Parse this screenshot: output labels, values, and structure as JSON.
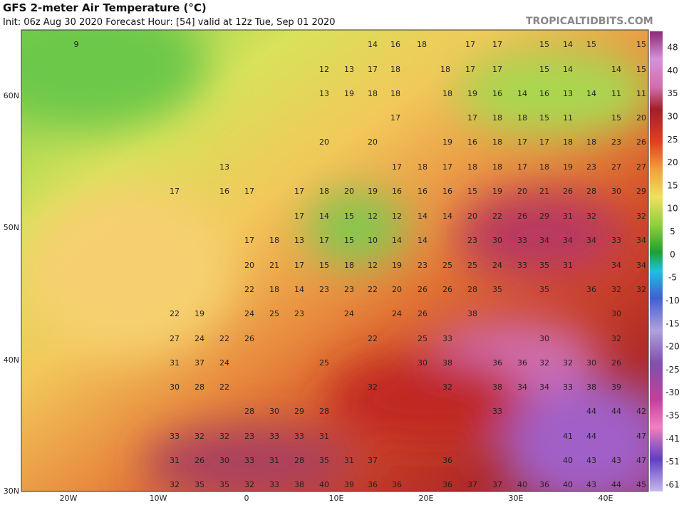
{
  "header": {
    "title": "GFS 2-meter Air Temperature (°C)",
    "subtitle": "Init: 06z Aug 30 2020   Forecast Hour: [54]   valid at 12z Tue, Sep 01 2020",
    "brand": "TROPICALTIDBITS.COM"
  },
  "map": {
    "lat_labels": [
      "60N",
      "50N",
      "40N",
      "30N"
    ],
    "lon_labels": [
      "20W",
      "10W",
      "0",
      "10E",
      "20E",
      "30E",
      "40E"
    ],
    "colorbar_labels": [
      "48",
      "40",
      "35",
      "30",
      "25",
      "20",
      "15",
      "10",
      "5",
      "0",
      "-5",
      "-10",
      "-15",
      "-20",
      "-25",
      "-30",
      "-35",
      "-41",
      "-51",
      "-61"
    ],
    "rows": [
      [
        9,
        14,
        16,
        18,
        17,
        17,
        15,
        14,
        15,
        15
      ],
      [
        12,
        13,
        17,
        18,
        18,
        17,
        17,
        15,
        14,
        14,
        15
      ],
      [
        13,
        19,
        18,
        18,
        18,
        19,
        16,
        14,
        16,
        13,
        14,
        11,
        11
      ],
      [
        17,
        17,
        18,
        18,
        15,
        11,
        15,
        20
      ],
      [
        20,
        20,
        19,
        16,
        18,
        17,
        17,
        18,
        18,
        23,
        26
      ],
      [
        13,
        17,
        18,
        17,
        18,
        18,
        17,
        18,
        19,
        23,
        27,
        27
      ],
      [
        17,
        16,
        17,
        17,
        18,
        20,
        19,
        16,
        16,
        16,
        15,
        19,
        20,
        21,
        26,
        28,
        30,
        29
      ],
      [
        17,
        14,
        15,
        12,
        12,
        14,
        14,
        20,
        22,
        26,
        29,
        31,
        32,
        32
      ],
      [
        17,
        18,
        13,
        17,
        15,
        10,
        14,
        14,
        23,
        30,
        33,
        34,
        34,
        34,
        33,
        34
      ],
      [
        20,
        21,
        17,
        15,
        18,
        12,
        19,
        23,
        25,
        25,
        24,
        33,
        35,
        31,
        34,
        34
      ],
      [
        22,
        18,
        14,
        23,
        23,
        22,
        20,
        26,
        26,
        28,
        35,
        35,
        36,
        32,
        32
      ],
      [
        22,
        19,
        24,
        25,
        23,
        24,
        24,
        26,
        38,
        30
      ],
      [
        27,
        24,
        22,
        26,
        22,
        25,
        33,
        30,
        32
      ],
      [
        31,
        37,
        24,
        25,
        30,
        38,
        36,
        36,
        32,
        32,
        30,
        26
      ],
      [
        30,
        28,
        22,
        32,
        32,
        38,
        34,
        34,
        33,
        38,
        39
      ],
      [
        28,
        30,
        29,
        28,
        33,
        44,
        44,
        42
      ],
      [
        33,
        32,
        32,
        23,
        33,
        33,
        31,
        41,
        44,
        47
      ],
      [
        31,
        26,
        30,
        33,
        31,
        28,
        35,
        31,
        37,
        36,
        40,
        43,
        43,
        47
      ],
      [
        32,
        35,
        35,
        32,
        33,
        38,
        40,
        39,
        36,
        36,
        36,
        37,
        37,
        40,
        36,
        40,
        43,
        44,
        45
      ]
    ]
  }
}
